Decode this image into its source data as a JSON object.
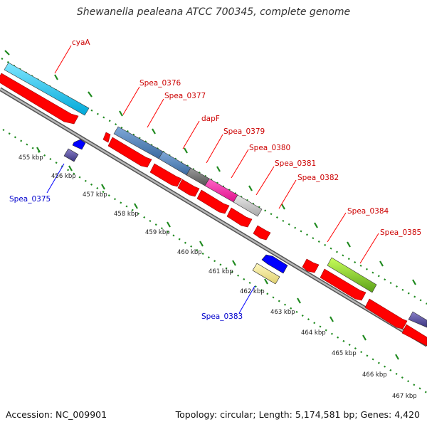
{
  "title": "Shewanella pealeana ATCC 700345, complete genome",
  "footer": {
    "accession": "Accession: NC_009901",
    "topology": "Topology: circular; Length: 5,174,581 bp; Genes: 4,420"
  },
  "colors": {
    "backbone": "#8c8c8c",
    "tick": "#1f8a1f",
    "cds": "#ff0000",
    "forward_label": "#cc0000",
    "reverse_label": "#0000cc"
  },
  "kbp_labels": [
    "455 kbp",
    "456 kbp",
    "457 kbp",
    "458 kbp",
    "459 kbp",
    "460 kbp",
    "461 kbp",
    "462 kbp",
    "463 kbp",
    "464 kbp",
    "465 kbp",
    "466 kbp",
    "467 kbp"
  ],
  "gene_labels_forward": [
    "cyaA",
    "Spea_0376",
    "Spea_0377",
    "dapF",
    "Spea_0379",
    "Spea_0380",
    "Spea_0381",
    "Spea_0382",
    "Spea_0384",
    "Spea_0385"
  ],
  "gene_labels_reverse": [
    "Spea_0375",
    "Spea_0383"
  ]
}
